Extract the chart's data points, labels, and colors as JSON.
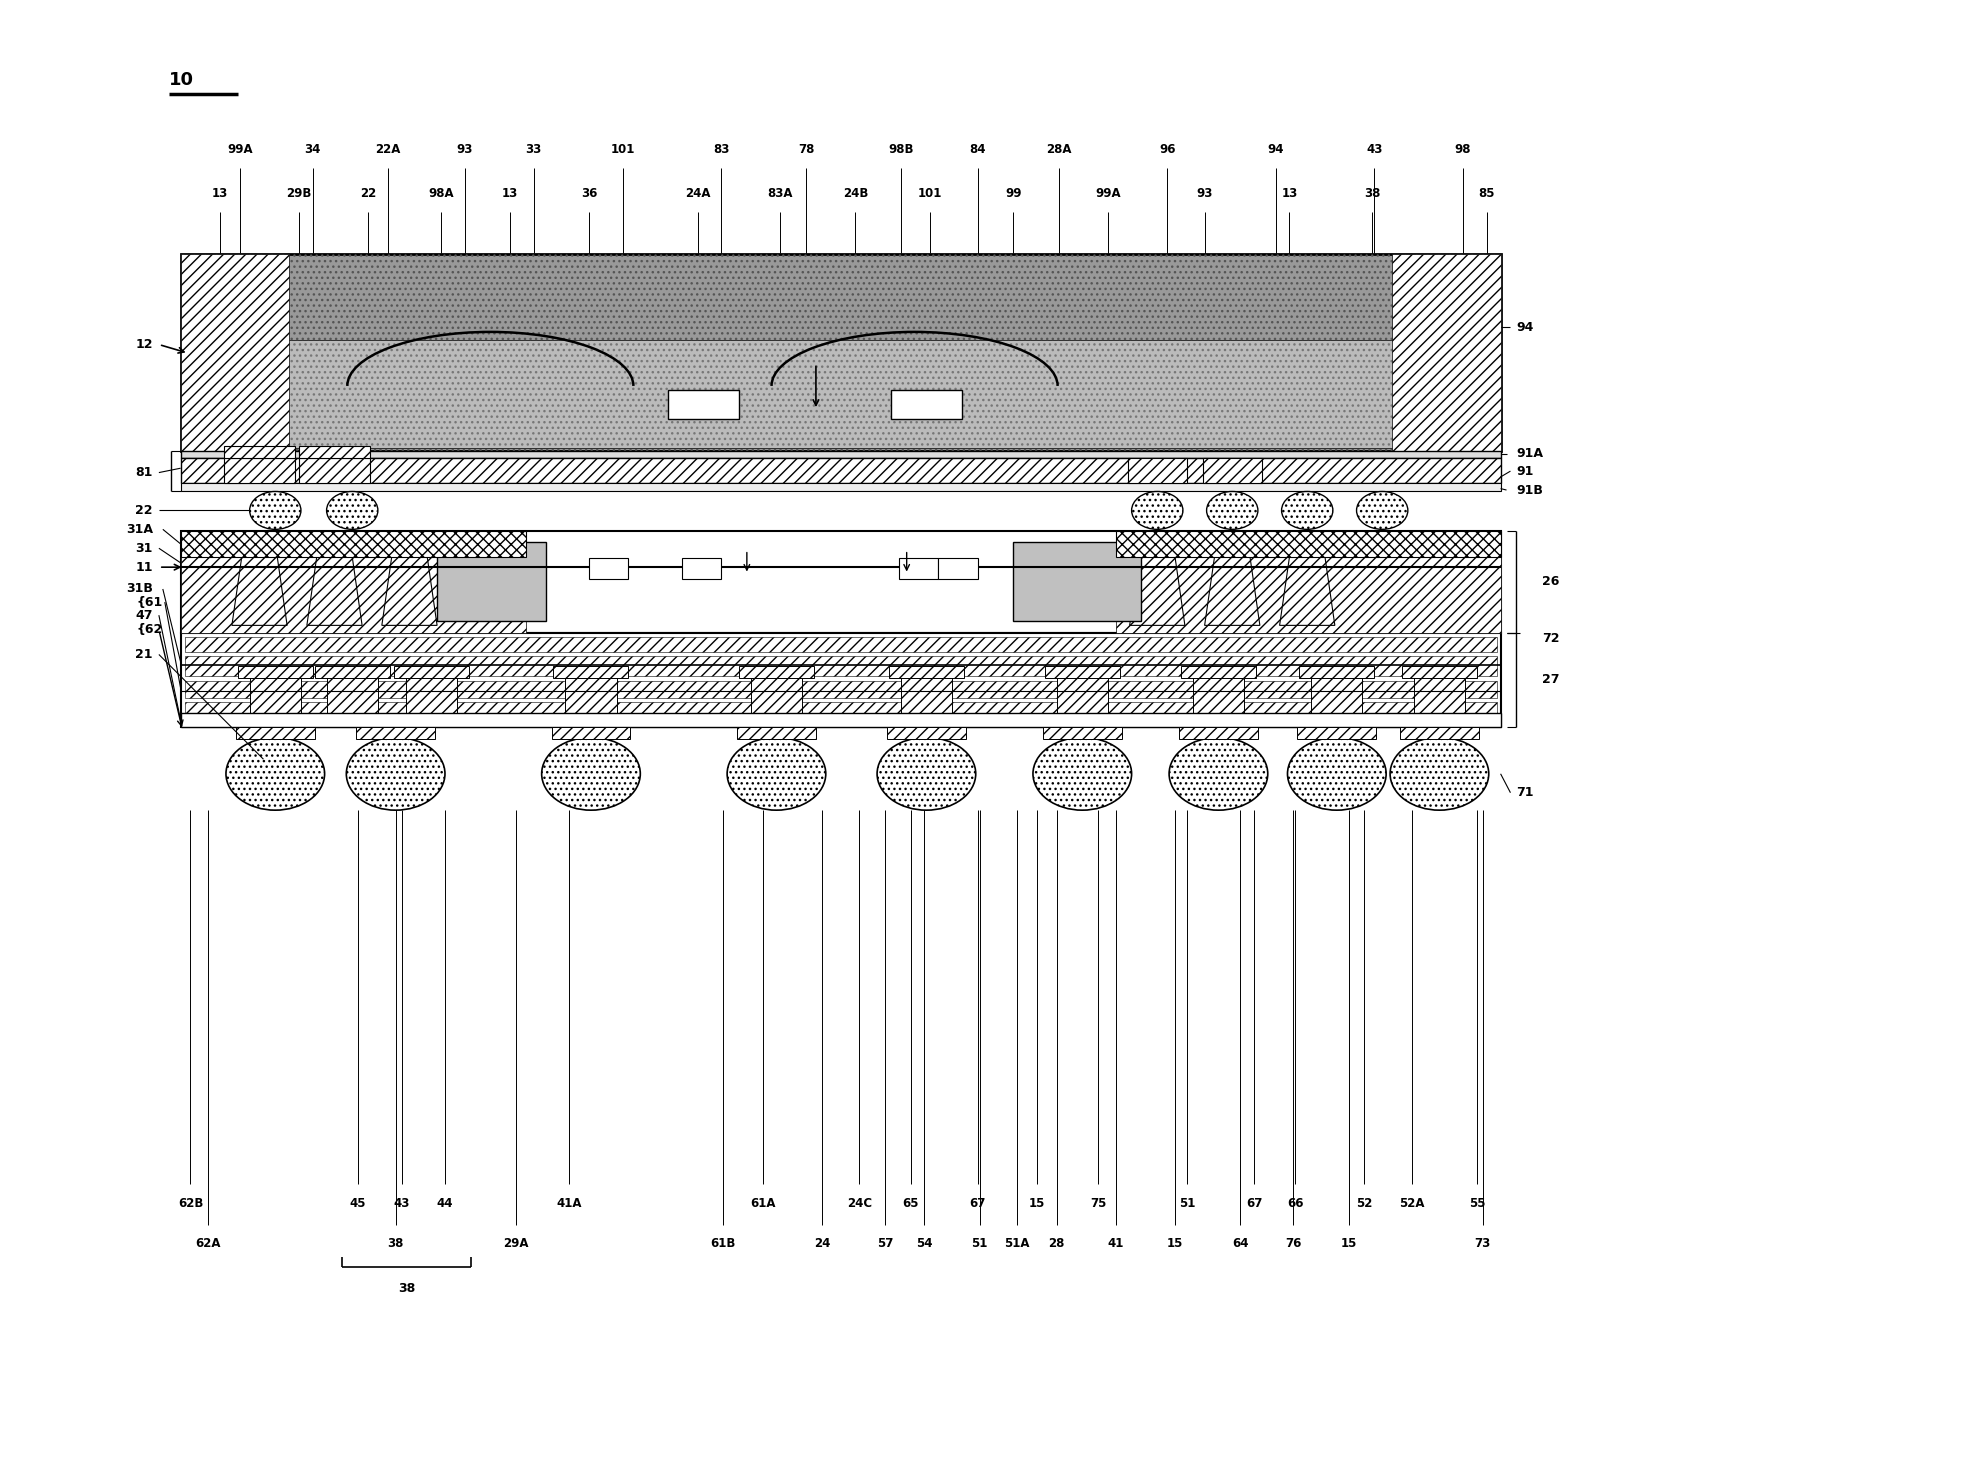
{
  "figsize": [
    19.87,
    14.69
  ],
  "dpi": 100,
  "bg_color": "#ffffff",
  "top_row1": {
    "labels": [
      "99A",
      "34",
      "22A",
      "93",
      "33",
      "101",
      "83",
      "78",
      "98B",
      "84",
      "28A",
      "96",
      "94",
      "43",
      "98"
    ],
    "x": [
      0.118,
      0.155,
      0.193,
      0.232,
      0.267,
      0.312,
      0.362,
      0.405,
      0.453,
      0.492,
      0.533,
      0.588,
      0.643,
      0.693,
      0.738
    ]
  },
  "top_row2": {
    "labels": [
      "13",
      "29B",
      "22",
      "98A",
      "13",
      "36",
      "24A",
      "83A",
      "24B",
      "101",
      "99",
      "99A",
      "93",
      "13",
      "38",
      "85"
    ],
    "x": [
      0.108,
      0.148,
      0.183,
      0.22,
      0.255,
      0.295,
      0.35,
      0.392,
      0.43,
      0.468,
      0.51,
      0.558,
      0.607,
      0.65,
      0.692,
      0.75
    ]
  },
  "bottom_row1": {
    "labels": [
      "62B",
      "45",
      "43",
      "44",
      "41A",
      "61A",
      "24C",
      "65",
      "67",
      "15",
      "75",
      "51",
      "67",
      "66",
      "52",
      "52A",
      "55"
    ],
    "x": [
      0.093,
      0.178,
      0.2,
      0.222,
      0.285,
      0.383,
      0.432,
      0.458,
      0.492,
      0.522,
      0.553,
      0.598,
      0.632,
      0.653,
      0.688,
      0.712,
      0.745
    ]
  },
  "bottom_row2": {
    "labels": [
      "62A",
      "38",
      "29A",
      "61B",
      "24",
      "57",
      "54",
      "51",
      "51A",
      "28",
      "41",
      "15",
      "64",
      "76",
      "15",
      "73"
    ],
    "x": [
      0.102,
      0.197,
      0.258,
      0.363,
      0.413,
      0.445,
      0.465,
      0.493,
      0.512,
      0.532,
      0.562,
      0.592,
      0.625,
      0.652,
      0.68,
      0.748
    ]
  },
  "chip12_color": "#888888",
  "chip12_inner_color": "#aaaaaa",
  "hatch_color": "#333333"
}
